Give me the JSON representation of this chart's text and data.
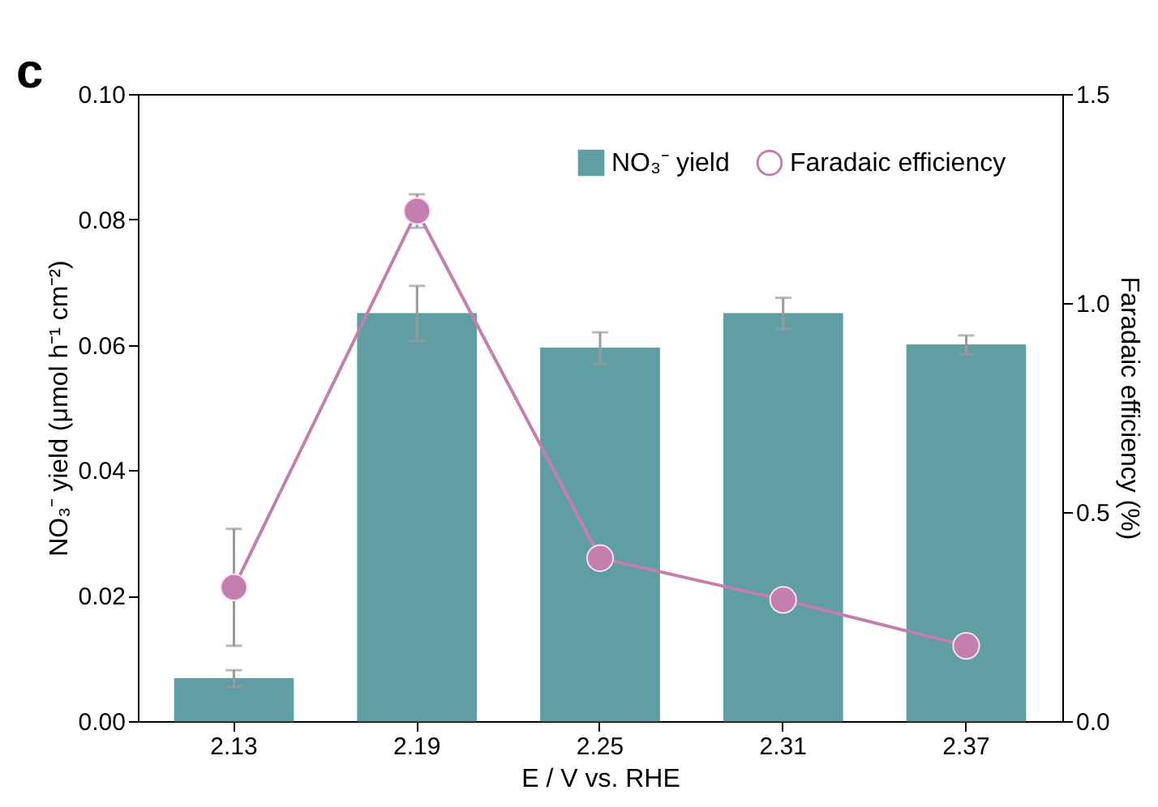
{
  "chart_data": {
    "type": "bar",
    "categories": [
      "2.13",
      "2.19",
      "2.25",
      "2.31",
      "2.37"
    ],
    "xlabel": "E / V vs. RHE",
    "ylabel": "NO₃⁻ yield (μmol h⁻¹ cm⁻²)",
    "y2label": "Faradaic efficiency (%)",
    "ylim": [
      0,
      0.1
    ],
    "yticks": [
      {
        "value": 0,
        "label": "0.00"
      },
      {
        "value": 0.02,
        "label": "0.02"
      },
      {
        "value": 0.04,
        "label": "0.04"
      },
      {
        "value": 0.06,
        "label": "0.06"
      },
      {
        "value": 0.08,
        "label": "0.08"
      },
      {
        "value": 0.1,
        "label": "0.10"
      }
    ],
    "y2lim": [
      0,
      1.5
    ],
    "y2ticks": [
      {
        "value": 0,
        "label": "0.0"
      },
      {
        "value": 0.5,
        "label": "0.5"
      },
      {
        "value": 1,
        "label": "1.0"
      },
      {
        "value": 1.5,
        "label": "1.5"
      }
    ],
    "series": [
      {
        "name": "NO₃⁻ yield",
        "color": "#5f9fa3",
        "values": [
          0.0068,
          0.065,
          0.0595,
          0.065,
          0.06
        ],
        "errors": [
          0.0013,
          0.0044,
          0.0025,
          0.0025,
          0.0015
        ]
      },
      {
        "name": "Faradaic efficiency",
        "type": "line",
        "axis": "y2",
        "color": "#c47fae",
        "marker": "circle",
        "values": [
          0.32,
          1.22,
          0.39,
          0.29,
          0.18
        ],
        "errors": [
          0.14,
          0.04,
          null,
          null,
          null
        ]
      }
    ],
    "legend": "top right",
    "grid": false,
    "annotations": [
      "c"
    ]
  }
}
